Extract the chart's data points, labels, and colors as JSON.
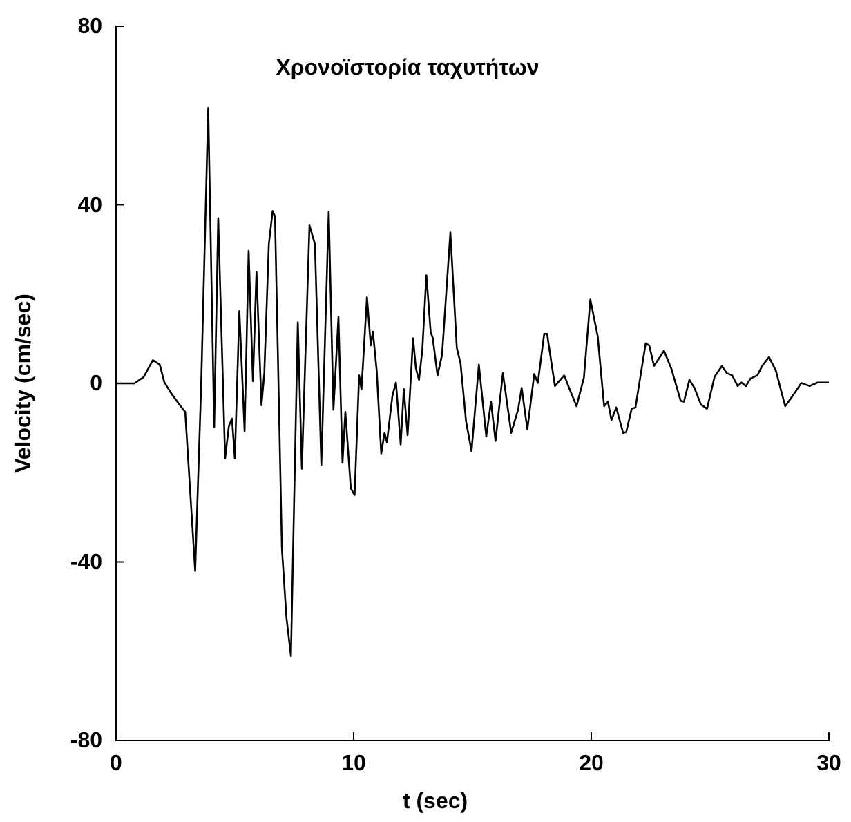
{
  "chart_data": {
    "type": "line",
    "title": "Χρονοϊστορία ταχυτήτων",
    "xlabel": "t (sec)",
    "ylabel": "Velocity (cm/sec)",
    "xlim": [
      0,
      30
    ],
    "xticks": [
      0,
      10,
      20,
      30
    ],
    "ylim": [
      -80,
      80
    ],
    "yticks": [
      -80,
      -40,
      0,
      40,
      80
    ],
    "grid": false,
    "marker": "none",
    "line_style": "solid",
    "series": [
      {
        "color": "#000000",
        "x": [
          0,
          0.77,
          1.16,
          1.55,
          1.84,
          2.03,
          2.33,
          2.62,
          2.91,
          3.33,
          3.58,
          3.88,
          4.13,
          4.3,
          4.59,
          4.75,
          4.88,
          5.0,
          5.19,
          5.41,
          5.58,
          5.76,
          5.91,
          6.12,
          6.24,
          6.43,
          6.59,
          6.69,
          6.98,
          7.17,
          7.36,
          7.65,
          7.82,
          8.14,
          8.37,
          8.64,
          8.95,
          9.15,
          9.36,
          9.53,
          9.65,
          9.88,
          10.04,
          10.23,
          10.33,
          10.56,
          10.72,
          10.81,
          10.97,
          11.16,
          11.3,
          11.4,
          11.63,
          11.78,
          11.98,
          12.11,
          12.27,
          12.5,
          12.62,
          12.75,
          12.89,
          13.06,
          13.24,
          13.33,
          13.53,
          13.72,
          14.07,
          14.34,
          14.5,
          14.73,
          14.96,
          15.27,
          15.58,
          15.78,
          15.97,
          16.28,
          16.63,
          16.92,
          17.07,
          17.31,
          17.6,
          17.75,
          18.02,
          18.14,
          18.47,
          18.86,
          19.11,
          19.38,
          19.69,
          19.96,
          20.27,
          20.54,
          20.7,
          20.85,
          21.05,
          21.34,
          21.47,
          21.7,
          21.86,
          22.29,
          22.44,
          22.64,
          23.06,
          23.37,
          23.76,
          23.9,
          24.13,
          24.34,
          24.61,
          24.87,
          25.19,
          25.5,
          25.7,
          25.93,
          26.16,
          26.32,
          26.51,
          26.7,
          26.99,
          27.19,
          27.48,
          27.77,
          28.16,
          28.45,
          28.84,
          29.19,
          29.52,
          30
        ],
        "values": [
          0,
          0,
          1.4,
          5.2,
          4.2,
          0.3,
          -2.3,
          -4.4,
          -6.4,
          -42,
          -0.8,
          61.7,
          -9.8,
          37,
          -16.8,
          -9.5,
          -7.9,
          -16.8,
          16.2,
          -10.7,
          29.7,
          0.5,
          25,
          -4.9,
          2.3,
          31.2,
          38.6,
          37.4,
          -36.9,
          -52.4,
          -61.1,
          13.7,
          -19.1,
          35.4,
          31.2,
          -18.3,
          38.5,
          -5.9,
          14.9,
          -17.8,
          -6.4,
          -23.5,
          -25,
          1.8,
          -1.3,
          19.3,
          8.5,
          11.6,
          2.8,
          -15.7,
          -11.1,
          -13.2,
          -2.8,
          0.2,
          -13.7,
          -1.3,
          -11.6,
          10.1,
          3.3,
          0.8,
          7.5,
          24.2,
          11.6,
          10.1,
          1.8,
          6.4,
          33.8,
          8,
          4.4,
          -8.5,
          -15.2,
          4.2,
          -11.9,
          -4.1,
          -12.9,
          2.3,
          -11.1,
          -5.9,
          -1,
          -10.3,
          2.1,
          0.1,
          11.1,
          11.1,
          -0.6,
          1.8,
          -1.6,
          -5.1,
          1.3,
          18.8,
          10.6,
          -5.1,
          -4.1,
          -8.2,
          -5.4,
          -11.1,
          -10.9,
          -5.7,
          -5.4,
          9,
          8.5,
          3.9,
          7.3,
          3.3,
          -3.9,
          -4.1,
          0.8,
          -1,
          -4.7,
          -5.7,
          1.5,
          3.9,
          2.3,
          1.8,
          -0.6,
          0.2,
          -0.6,
          1.1,
          1.8,
          3.9,
          5.9,
          2.8,
          -5.1,
          -3,
          0.1,
          -0.6,
          0.2,
          0.2
        ]
      }
    ]
  }
}
